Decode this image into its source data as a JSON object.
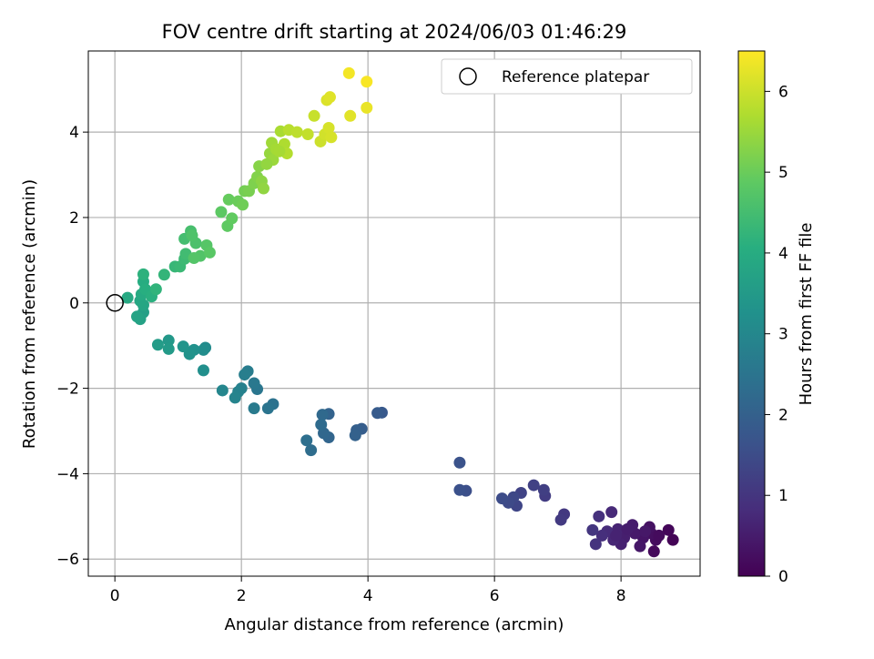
{
  "chart_data": {
    "type": "scatter",
    "title": "FOV centre drift starting at 2024/06/03 01:46:29",
    "xlabel": "Angular distance from reference (arcmin)",
    "ylabel": "Rotation from reference (arcmin)",
    "xlim": [
      -0.42,
      9.25
    ],
    "ylim": [
      -6.4,
      5.9
    ],
    "xticks": [
      0,
      2,
      4,
      6,
      8
    ],
    "xtick_labels": [
      "0",
      "2",
      "4",
      "6",
      "8"
    ],
    "yticks": [
      -6,
      -4,
      -2,
      0,
      2,
      4
    ],
    "ytick_labels": [
      "−6",
      "−4",
      "−2",
      "0",
      "2",
      "4"
    ],
    "grid": true,
    "colormap": "viridis",
    "colorbar": {
      "label": "Hours from first FF file",
      "range": [
        0,
        6.5
      ],
      "ticks": [
        0,
        1,
        2,
        3,
        4,
        5,
        6
      ],
      "tick_labels": [
        "0",
        "1",
        "2",
        "3",
        "4",
        "5",
        "6"
      ]
    },
    "legend": {
      "position": "top-right",
      "label": "Reference platepar"
    },
    "reference_point": {
      "x": 0,
      "y": 0
    },
    "points": [
      {
        "x": 8.82,
        "y": -5.55,
        "h": 0.05
      },
      {
        "x": 8.75,
        "y": -5.32,
        "h": 0.1
      },
      {
        "x": 8.52,
        "y": -5.82,
        "h": 0.15
      },
      {
        "x": 8.55,
        "y": -5.55,
        "h": 0.2
      },
      {
        "x": 8.48,
        "y": -5.4,
        "h": 0.25
      },
      {
        "x": 8.45,
        "y": -5.25,
        "h": 0.3
      },
      {
        "x": 8.35,
        "y": -5.5,
        "h": 0.35
      },
      {
        "x": 8.3,
        "y": -5.7,
        "h": 0.4
      },
      {
        "x": 8.22,
        "y": -5.4,
        "h": 0.45
      },
      {
        "x": 8.18,
        "y": -5.2,
        "h": 0.5
      },
      {
        "x": 8.05,
        "y": -5.5,
        "h": 0.55
      },
      {
        "x": 8.0,
        "y": -5.65,
        "h": 0.6
      },
      {
        "x": 7.95,
        "y": -5.3,
        "h": 0.65
      },
      {
        "x": 7.88,
        "y": -5.55,
        "h": 0.7
      },
      {
        "x": 7.85,
        "y": -4.9,
        "h": 0.75
      },
      {
        "x": 7.78,
        "y": -5.35,
        "h": 0.8
      },
      {
        "x": 7.7,
        "y": -5.45,
        "h": 0.85
      },
      {
        "x": 7.65,
        "y": -5.0,
        "h": 0.9
      },
      {
        "x": 7.6,
        "y": -5.65,
        "h": 0.95
      },
      {
        "x": 7.55,
        "y": -5.32,
        "h": 1.0
      },
      {
        "x": 8.38,
        "y": -5.35,
        "h": 0.42
      },
      {
        "x": 8.6,
        "y": -5.45,
        "h": 0.18
      },
      {
        "x": 7.92,
        "y": -5.45,
        "h": 0.62
      },
      {
        "x": 8.1,
        "y": -5.3,
        "h": 0.52
      },
      {
        "x": 7.1,
        "y": -4.95,
        "h": 1.05
      },
      {
        "x": 7.05,
        "y": -5.08,
        "h": 1.1
      },
      {
        "x": 6.8,
        "y": -4.52,
        "h": 1.15
      },
      {
        "x": 6.78,
        "y": -4.38,
        "h": 1.2
      },
      {
        "x": 6.62,
        "y": -4.27,
        "h": 1.25
      },
      {
        "x": 6.42,
        "y": -4.45,
        "h": 1.3
      },
      {
        "x": 6.35,
        "y": -4.75,
        "h": 1.35
      },
      {
        "x": 6.3,
        "y": -4.55,
        "h": 1.4
      },
      {
        "x": 6.22,
        "y": -4.68,
        "h": 1.45
      },
      {
        "x": 6.12,
        "y": -4.58,
        "h": 1.5
      },
      {
        "x": 5.55,
        "y": -4.4,
        "h": 1.55
      },
      {
        "x": 5.45,
        "y": -4.38,
        "h": 1.6
      },
      {
        "x": 5.45,
        "y": -3.74,
        "h": 1.65
      },
      {
        "x": 4.22,
        "y": -2.57,
        "h": 1.8
      },
      {
        "x": 4.15,
        "y": -2.58,
        "h": 1.85
      },
      {
        "x": 3.9,
        "y": -2.95,
        "h": 1.9
      },
      {
        "x": 3.82,
        "y": -2.98,
        "h": 1.95
      },
      {
        "x": 3.8,
        "y": -3.1,
        "h": 2.0
      },
      {
        "x": 3.38,
        "y": -2.6,
        "h": 2.05
      },
      {
        "x": 3.38,
        "y": -3.15,
        "h": 2.1
      },
      {
        "x": 3.3,
        "y": -3.05,
        "h": 2.15
      },
      {
        "x": 3.28,
        "y": -2.62,
        "h": 2.2
      },
      {
        "x": 3.26,
        "y": -2.85,
        "h": 2.25
      },
      {
        "x": 3.1,
        "y": -3.45,
        "h": 2.3
      },
      {
        "x": 3.03,
        "y": -3.22,
        "h": 2.35
      },
      {
        "x": 2.5,
        "y": -2.37,
        "h": 2.45
      },
      {
        "x": 2.42,
        "y": -2.47,
        "h": 2.5
      },
      {
        "x": 2.25,
        "y": -2.02,
        "h": 2.55
      },
      {
        "x": 2.2,
        "y": -1.88,
        "h": 2.6
      },
      {
        "x": 2.2,
        "y": -2.47,
        "h": 2.65
      },
      {
        "x": 2.1,
        "y": -1.6,
        "h": 2.7
      },
      {
        "x": 2.05,
        "y": -1.68,
        "h": 2.75
      },
      {
        "x": 2.0,
        "y": -2.0,
        "h": 2.8
      },
      {
        "x": 1.95,
        "y": -2.08,
        "h": 2.85
      },
      {
        "x": 1.9,
        "y": -2.22,
        "h": 2.9
      },
      {
        "x": 1.7,
        "y": -2.05,
        "h": 2.95
      },
      {
        "x": 1.43,
        "y": -1.05,
        "h": 3.1
      },
      {
        "x": 1.4,
        "y": -1.1,
        "h": 3.15
      },
      {
        "x": 1.4,
        "y": -1.58,
        "h": 3.2
      },
      {
        "x": 1.25,
        "y": -1.1,
        "h": 3.25
      },
      {
        "x": 1.18,
        "y": -1.2,
        "h": 3.3
      },
      {
        "x": 1.08,
        "y": -1.02,
        "h": 3.35
      },
      {
        "x": 0.85,
        "y": -0.88,
        "h": 3.45
      },
      {
        "x": 0.85,
        "y": -1.08,
        "h": 3.5
      },
      {
        "x": 0.68,
        "y": -0.98,
        "h": 3.55
      },
      {
        "x": 0.45,
        "y": -0.22,
        "h": 3.65
      },
      {
        "x": 0.4,
        "y": -0.38,
        "h": 3.7
      },
      {
        "x": 0.35,
        "y": -0.32,
        "h": 3.75
      },
      {
        "x": 0.45,
        "y": -0.05,
        "h": 3.8
      },
      {
        "x": 0.4,
        "y": 0.05,
        "h": 3.85
      },
      {
        "x": 0.2,
        "y": 0.12,
        "h": 3.9
      },
      {
        "x": 0.42,
        "y": 0.2,
        "h": 3.95
      },
      {
        "x": 0.45,
        "y": 0.5,
        "h": 4.0
      },
      {
        "x": 0.48,
        "y": 0.32,
        "h": 4.05
      },
      {
        "x": 0.58,
        "y": 0.15,
        "h": 4.1
      },
      {
        "x": 0.45,
        "y": 0.67,
        "h": 4.15
      },
      {
        "x": 0.65,
        "y": 0.32,
        "h": 4.2
      },
      {
        "x": 0.78,
        "y": 0.66,
        "h": 4.25
      },
      {
        "x": 0.95,
        "y": 0.85,
        "h": 4.3
      },
      {
        "x": 1.03,
        "y": 0.85,
        "h": 4.35
      },
      {
        "x": 1.1,
        "y": 1.03,
        "h": 4.4
      },
      {
        "x": 1.12,
        "y": 1.15,
        "h": 4.45
      },
      {
        "x": 1.1,
        "y": 1.5,
        "h": 4.5
      },
      {
        "x": 1.2,
        "y": 1.68,
        "h": 4.55
      },
      {
        "x": 1.28,
        "y": 1.4,
        "h": 4.6
      },
      {
        "x": 1.22,
        "y": 1.58,
        "h": 4.65
      },
      {
        "x": 1.35,
        "y": 1.1,
        "h": 4.7
      },
      {
        "x": 1.45,
        "y": 1.35,
        "h": 4.75
      },
      {
        "x": 1.5,
        "y": 1.18,
        "h": 4.8
      },
      {
        "x": 1.25,
        "y": 1.05,
        "h": 4.72
      },
      {
        "x": 1.68,
        "y": 2.13,
        "h": 4.85
      },
      {
        "x": 1.78,
        "y": 1.8,
        "h": 4.88
      },
      {
        "x": 1.85,
        "y": 1.98,
        "h": 4.9
      },
      {
        "x": 1.8,
        "y": 2.42,
        "h": 4.95
      },
      {
        "x": 1.95,
        "y": 2.38,
        "h": 5.0
      },
      {
        "x": 2.02,
        "y": 2.3,
        "h": 5.05
      },
      {
        "x": 2.05,
        "y": 2.62,
        "h": 5.1
      },
      {
        "x": 2.12,
        "y": 2.62,
        "h": 5.15
      },
      {
        "x": 2.2,
        "y": 2.8,
        "h": 5.2
      },
      {
        "x": 2.25,
        "y": 2.95,
        "h": 5.25
      },
      {
        "x": 2.28,
        "y": 3.2,
        "h": 5.3
      },
      {
        "x": 2.32,
        "y": 2.85,
        "h": 5.35
      },
      {
        "x": 2.35,
        "y": 2.68,
        "h": 5.4
      },
      {
        "x": 2.45,
        "y": 3.5,
        "h": 5.45
      },
      {
        "x": 2.5,
        "y": 3.35,
        "h": 5.5
      },
      {
        "x": 2.48,
        "y": 3.75,
        "h": 5.55
      },
      {
        "x": 2.55,
        "y": 3.6,
        "h": 5.6
      },
      {
        "x": 2.62,
        "y": 4.02,
        "h": 5.65
      },
      {
        "x": 2.68,
        "y": 3.72,
        "h": 5.7
      },
      {
        "x": 2.72,
        "y": 3.5,
        "h": 5.75
      },
      {
        "x": 2.75,
        "y": 4.05,
        "h": 5.8
      },
      {
        "x": 2.88,
        "y": 4.0,
        "h": 5.85
      },
      {
        "x": 3.05,
        "y": 3.95,
        "h": 5.9
      },
      {
        "x": 3.15,
        "y": 4.38,
        "h": 5.95
      },
      {
        "x": 3.25,
        "y": 3.78,
        "h": 6.0
      },
      {
        "x": 3.32,
        "y": 3.95,
        "h": 6.05
      },
      {
        "x": 3.38,
        "y": 4.1,
        "h": 6.1
      },
      {
        "x": 3.42,
        "y": 3.88,
        "h": 6.1
      },
      {
        "x": 3.35,
        "y": 4.75,
        "h": 6.15
      },
      {
        "x": 3.4,
        "y": 4.82,
        "h": 6.2
      },
      {
        "x": 3.72,
        "y": 4.38,
        "h": 6.22
      },
      {
        "x": 3.7,
        "y": 5.38,
        "h": 6.4
      },
      {
        "x": 3.98,
        "y": 4.57,
        "h": 6.3
      },
      {
        "x": 3.98,
        "y": 5.18,
        "h": 6.45
      },
      {
        "x": 2.6,
        "y": 3.55,
        "h": 5.62
      },
      {
        "x": 2.4,
        "y": 3.25,
        "h": 5.42
      }
    ]
  }
}
